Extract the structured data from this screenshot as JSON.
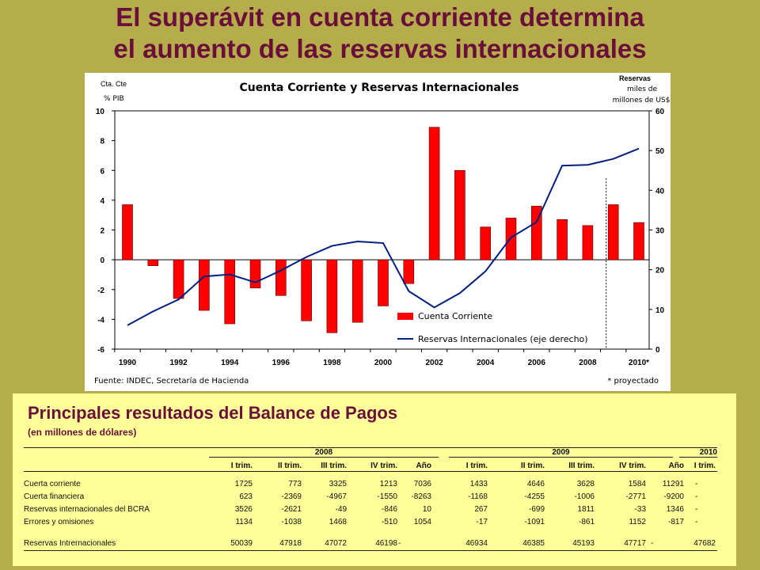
{
  "slide_title": {
    "line1": "El superávit en cuenta corriente determina",
    "line2": "el aumento de las reservas internacionales"
  },
  "chart_data": {
    "type": "bar",
    "title": "Cuenta Corriente y Reservas Internacionales",
    "left_axis_label": {
      "line1": "Cta. Cte",
      "line2": "% PIB"
    },
    "right_axis_label": {
      "line1": "Reservas",
      "line2": "miles de",
      "line3": "millones de  US$"
    },
    "source": "Fuente: INDEC, Secretaría de Hacienda",
    "note": "* proyectado",
    "years": [
      1990,
      1991,
      1992,
      1993,
      1994,
      1995,
      1996,
      1997,
      1998,
      1999,
      2000,
      2001,
      2002,
      2003,
      2004,
      2005,
      2006,
      2007,
      2008,
      2009,
      2010
    ],
    "x_tick_labels": [
      "1990",
      "1992",
      "1994",
      "1996",
      "1998",
      "2000",
      "2002",
      "2004",
      "2006",
      "2008",
      "2010*"
    ],
    "left_axis": {
      "ylim": [
        -6,
        10
      ],
      "ticks": [
        -6,
        -4,
        -2,
        0,
        2,
        4,
        6,
        8,
        10
      ]
    },
    "right_axis": {
      "ylim": [
        0,
        60
      ],
      "ticks": [
        0,
        10,
        20,
        30,
        40,
        50,
        60
      ]
    },
    "legend_position": "bottom-center",
    "projection_marker_after_year": 2009,
    "series": [
      {
        "name": "Cuenta Corriente",
        "type": "bar",
        "axis": "left",
        "color": "#ff0000",
        "values": [
          3.7,
          -0.4,
          -2.6,
          -3.4,
          -4.3,
          -1.9,
          -2.4,
          -4.1,
          -4.9,
          -4.2,
          -3.1,
          -1.6,
          8.9,
          6.0,
          2.2,
          2.8,
          3.6,
          2.7,
          2.3,
          3.7,
          2.5
        ]
      },
      {
        "name": "Reservas Internacionales (eje derecho)",
        "type": "line",
        "axis": "right",
        "color": "#00207f",
        "values": [
          6.0,
          9.5,
          12.5,
          18.3,
          18.8,
          16.8,
          19.8,
          23.2,
          26.0,
          27.1,
          26.7,
          14.6,
          10.5,
          14.1,
          19.6,
          28.1,
          32.0,
          46.2,
          46.4,
          47.9,
          50.5
        ]
      }
    ]
  },
  "balance_table": {
    "title": "Principales resultados del Balance de Pagos",
    "subtitle": "(en millones de dólares)",
    "years": [
      "2008",
      "2009",
      "2010"
    ],
    "columns": [
      "I trim.",
      "II trim.",
      "III trim.",
      "IV trim.",
      "Año",
      "I trim.",
      "II trim.",
      "III trim.",
      "IV trim.",
      "Año",
      "I trim."
    ],
    "rows": [
      {
        "label": "Cuerta corriente",
        "values": [
          "1725",
          "773",
          "3325",
          "1213",
          "7036",
          "1433",
          "4646",
          "3628",
          "1584",
          "11291",
          "-"
        ]
      },
      {
        "label": "Cuerta financiera",
        "values": [
          "623",
          "-2369",
          "-4967",
          "-1550",
          "-8263",
          "-1168",
          "-4255",
          "-1006",
          "-2771",
          "-9200",
          "-"
        ]
      },
      {
        "label": "Reservas internacionales del BCRA",
        "values": [
          "3526",
          "-2621",
          "-49",
          "-846",
          "10",
          "267",
          "-699",
          "1811",
          "-33",
          "1346",
          "-"
        ]
      },
      {
        "label": "Errores y omisiones",
        "values": [
          "1134",
          "-1038",
          "1468",
          "-510",
          "1054",
          "-17",
          "-1091",
          "-861",
          "1152",
          "-817",
          "-"
        ]
      },
      {
        "label": "Reservas Intrernacionales",
        "values": [
          "50039",
          "47918",
          "47072",
          "46198",
          "-",
          "46934",
          "46385",
          "45193",
          "47717",
          "-",
          "47682"
        ]
      }
    ]
  }
}
